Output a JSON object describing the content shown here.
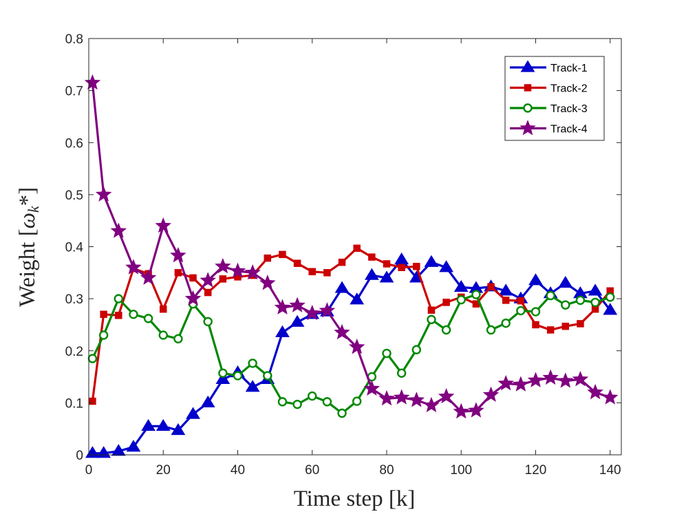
{
  "chart_data": {
    "type": "line",
    "title": "",
    "xlabel": "Time step [k]",
    "ylabel": "Weight [ωk*]",
    "ylabel_main": "Weight [",
    "ylabel_symbol": "ω",
    "ylabel_subscript": "k",
    "ylabel_suffix": "*]",
    "xlim": [
      0,
      143
    ],
    "ylim": [
      0,
      0.8
    ],
    "xticks": [
      0,
      20,
      40,
      60,
      80,
      100,
      120,
      140
    ],
    "yticks": [
      0,
      0.1,
      0.2,
      0.3,
      0.4,
      0.5,
      0.6,
      0.7,
      0.8
    ],
    "xtick_labels": [
      "0",
      "20",
      "40",
      "60",
      "80",
      "100",
      "120",
      "140"
    ],
    "ytick_labels": [
      "0",
      "0.1",
      "0.2",
      "0.3",
      "0.4",
      "0.5",
      "0.6",
      "0.7",
      "0.8"
    ],
    "grid": false,
    "legend_position": "top-right",
    "x": [
      1,
      4,
      8,
      12,
      16,
      20,
      24,
      28,
      32,
      36,
      40,
      44,
      48,
      52,
      56,
      60,
      64,
      68,
      72,
      76,
      80,
      84,
      88,
      92,
      96,
      100,
      104,
      108,
      112,
      116,
      120,
      124,
      128,
      132,
      136,
      140
    ],
    "series": [
      {
        "name": "Track-1",
        "color": "#0000cc",
        "marker": "triangle",
        "values": [
          0.003,
          0.003,
          0.007,
          0.015,
          0.055,
          0.055,
          0.047,
          0.078,
          0.1,
          0.145,
          0.158,
          0.13,
          0.145,
          0.235,
          0.255,
          0.27,
          0.275,
          0.32,
          0.298,
          0.345,
          0.34,
          0.375,
          0.34,
          0.37,
          0.36,
          0.322,
          0.32,
          0.323,
          0.315,
          0.3,
          0.335,
          0.31,
          0.33,
          0.31,
          0.315,
          0.278
        ]
      },
      {
        "name": "Track-2",
        "color": "#cc0000",
        "marker": "square",
        "values": [
          0.103,
          0.27,
          0.268,
          0.358,
          0.348,
          0.28,
          0.35,
          0.34,
          0.312,
          0.338,
          0.342,
          0.345,
          0.378,
          0.385,
          0.368,
          0.352,
          0.35,
          0.37,
          0.397,
          0.38,
          0.367,
          0.36,
          0.362,
          0.278,
          0.293,
          0.303,
          0.29,
          0.323,
          0.297,
          0.296,
          0.25,
          0.24,
          0.247,
          0.252,
          0.28,
          0.315
        ]
      },
      {
        "name": "Track-3",
        "color": "#008800",
        "marker": "circle",
        "values": [
          0.185,
          0.23,
          0.3,
          0.27,
          0.262,
          0.23,
          0.223,
          0.29,
          0.256,
          0.157,
          0.152,
          0.176,
          0.152,
          0.102,
          0.097,
          0.113,
          0.102,
          0.08,
          0.103,
          0.15,
          0.195,
          0.157,
          0.202,
          0.26,
          0.24,
          0.298,
          0.308,
          0.24,
          0.253,
          0.277,
          0.275,
          0.306,
          0.288,
          0.297,
          0.293,
          0.303
        ]
      },
      {
        "name": "Track-4",
        "color": "#800080",
        "marker": "star",
        "values": [
          0.715,
          0.5,
          0.43,
          0.36,
          0.34,
          0.44,
          0.383,
          0.3,
          0.335,
          0.362,
          0.353,
          0.35,
          0.33,
          0.283,
          0.287,
          0.272,
          0.277,
          0.235,
          0.207,
          0.127,
          0.108,
          0.11,
          0.105,
          0.095,
          0.112,
          0.083,
          0.085,
          0.115,
          0.137,
          0.135,
          0.143,
          0.148,
          0.142,
          0.145,
          0.12,
          0.11
        ]
      }
    ]
  }
}
